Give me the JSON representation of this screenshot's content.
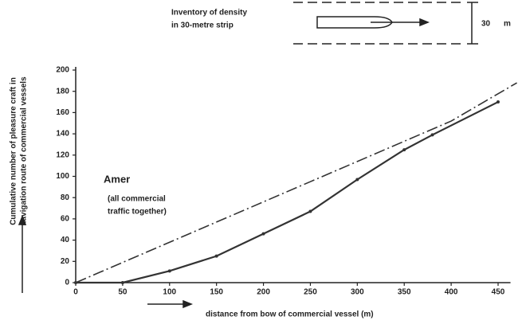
{
  "chart_data": {
    "type": "line",
    "y_label": [
      "Cumulative number of pleasure craft in",
      "navigation route of commercial vessels"
    ],
    "x_label": "distance from bow of commercial vessel (m)",
    "annotations": [
      "Amer",
      "(all commercial",
      "traffic together)",
      "Inventory of density",
      "in 30-metre strip",
      "30",
      "m"
    ],
    "xlim": [
      0,
      470
    ],
    "ylim": [
      0,
      200
    ],
    "xticks": [
      0,
      50,
      100,
      150,
      200,
      250,
      300,
      350,
      400,
      450
    ],
    "yticks": [
      0,
      20,
      40,
      60,
      80,
      100,
      120,
      140,
      160,
      180,
      200
    ],
    "series": [
      {
        "color": "#333333",
        "style": "solid",
        "markers": true,
        "x": [
          0,
          50,
          100,
          150,
          200,
          250,
          300,
          350,
          380,
          450
        ],
        "values": [
          0,
          0,
          11,
          25,
          46,
          67,
          97,
          125,
          139,
          170
        ]
      },
      {
        "color": "#333333",
        "style": "dash-dot",
        "markers": false,
        "x": [
          0,
          250,
          400,
          470
        ],
        "values": [
          0,
          95,
          152,
          188
        ]
      }
    ]
  }
}
